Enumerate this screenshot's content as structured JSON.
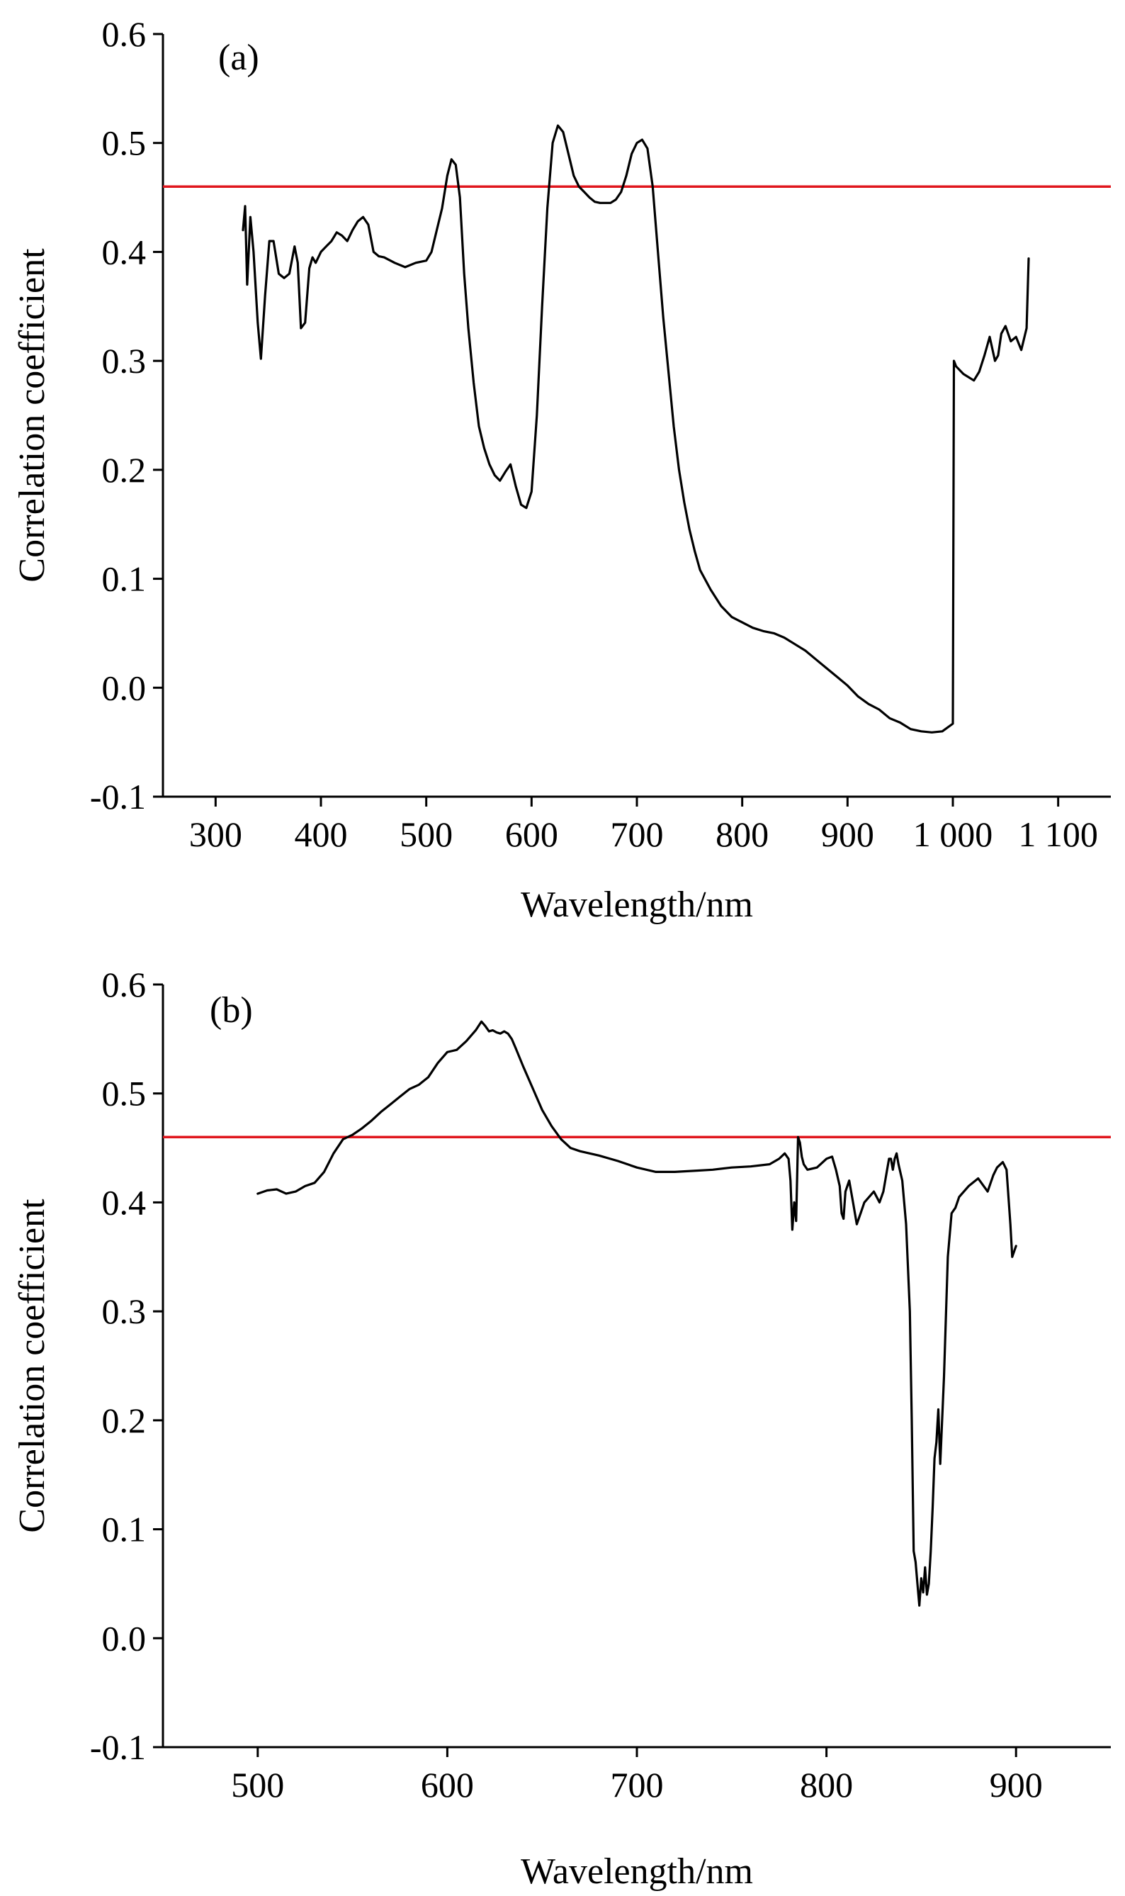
{
  "chart_data": [
    {
      "type": "line",
      "panel_label": "(a)",
      "xlabel": "Wavelength/nm",
      "ylabel": "Correlation coefficient",
      "xlim": [
        250,
        1150
      ],
      "ylim": [
        -0.1,
        0.6
      ],
      "x_ticks": [
        300,
        400,
        500,
        600,
        700,
        800,
        900,
        1000,
        1100
      ],
      "x_tick_labels": [
        "300",
        "400",
        "500",
        "600",
        "700",
        "800",
        "900",
        "1 000",
        "1 100"
      ],
      "y_ticks": [
        -0.1,
        0.0,
        0.1,
        0.2,
        0.3,
        0.4,
        0.5,
        0.6
      ],
      "y_tick_labels": [
        "-0.1",
        "0.0",
        "0.1",
        "0.2",
        "0.3",
        "0.4",
        "0.5",
        "0.6"
      ],
      "grid": false,
      "reference_line": {
        "y": 0.46,
        "color": "#e0161d"
      },
      "series": [
        {
          "color": "#000000",
          "x": [
            326,
            328,
            330,
            333,
            336,
            340,
            343,
            347,
            351,
            355,
            360,
            365,
            370,
            375,
            378,
            381,
            385,
            389,
            392,
            395,
            400,
            405,
            410,
            415,
            420,
            425,
            430,
            435,
            440,
            445,
            450,
            455,
            460,
            470,
            480,
            490,
            500,
            505,
            510,
            515,
            520,
            524,
            528,
            532,
            536,
            540,
            545,
            550,
            555,
            560,
            565,
            570,
            575,
            580,
            585,
            590,
            595,
            600,
            605,
            610,
            615,
            620,
            625,
            630,
            635,
            640,
            645,
            650,
            655,
            660,
            665,
            670,
            675,
            680,
            685,
            690,
            695,
            700,
            705,
            710,
            715,
            720,
            725,
            730,
            735,
            740,
            745,
            750,
            755,
            760,
            770,
            780,
            790,
            800,
            810,
            820,
            830,
            840,
            850,
            860,
            870,
            880,
            890,
            900,
            910,
            920,
            930,
            940,
            950,
            960,
            970,
            980,
            990,
            1000,
            1001,
            1003,
            1010,
            1020,
            1025,
            1030,
            1035,
            1040,
            1043,
            1046,
            1050,
            1055,
            1060,
            1065,
            1070,
            1072
          ],
          "y": [
            0.42,
            0.442,
            0.37,
            0.432,
            0.4,
            0.335,
            0.302,
            0.36,
            0.41,
            0.41,
            0.38,
            0.376,
            0.38,
            0.405,
            0.39,
            0.33,
            0.335,
            0.385,
            0.395,
            0.39,
            0.4,
            0.405,
            0.41,
            0.418,
            0.415,
            0.41,
            0.42,
            0.428,
            0.432,
            0.425,
            0.4,
            0.396,
            0.395,
            0.39,
            0.386,
            0.39,
            0.392,
            0.4,
            0.42,
            0.44,
            0.47,
            0.485,
            0.48,
            0.45,
            0.38,
            0.33,
            0.28,
            0.24,
            0.22,
            0.205,
            0.195,
            0.19,
            0.198,
            0.205,
            0.185,
            0.168,
            0.165,
            0.18,
            0.25,
            0.35,
            0.44,
            0.5,
            0.516,
            0.51,
            0.49,
            0.47,
            0.46,
            0.455,
            0.45,
            0.446,
            0.445,
            0.445,
            0.445,
            0.448,
            0.455,
            0.47,
            0.49,
            0.5,
            0.503,
            0.495,
            0.46,
            0.4,
            0.34,
            0.29,
            0.24,
            0.2,
            0.17,
            0.145,
            0.125,
            0.108,
            0.09,
            0.075,
            0.065,
            0.06,
            0.055,
            0.052,
            0.05,
            0.046,
            0.04,
            0.034,
            0.026,
            0.018,
            0.01,
            0.002,
            -0.008,
            -0.015,
            -0.02,
            -0.028,
            -0.032,
            -0.038,
            -0.04,
            -0.041,
            -0.04,
            -0.033,
            0.3,
            0.295,
            0.288,
            0.282,
            0.29,
            0.305,
            0.322,
            0.3,
            0.305,
            0.325,
            0.332,
            0.318,
            0.322,
            0.31,
            0.33,
            0.394
          ]
        }
      ]
    },
    {
      "type": "line",
      "panel_label": "(b)",
      "xlabel": "Wavelength/nm",
      "ylabel": "Correlation coefficient",
      "xlim": [
        450,
        950
      ],
      "ylim": [
        -0.1,
        0.6
      ],
      "x_ticks": [
        500,
        600,
        700,
        800,
        900
      ],
      "x_tick_labels": [
        "500",
        "600",
        "700",
        "800",
        "900"
      ],
      "y_ticks": [
        -0.1,
        0.0,
        0.1,
        0.2,
        0.3,
        0.4,
        0.5,
        0.6
      ],
      "y_tick_labels": [
        "-0.1",
        "0.0",
        "0.1",
        "0.2",
        "0.3",
        "0.4",
        "0.5",
        "0.6"
      ],
      "grid": false,
      "reference_line": {
        "y": 0.46,
        "color": "#e0161d"
      },
      "series": [
        {
          "color": "#000000",
          "x": [
            500,
            505,
            510,
            515,
            520,
            525,
            530,
            535,
            540,
            545,
            550,
            555,
            560,
            565,
            570,
            575,
            580,
            585,
            590,
            595,
            600,
            605,
            610,
            615,
            618,
            620,
            622,
            624,
            626,
            628,
            630,
            632,
            634,
            636,
            640,
            645,
            650,
            655,
            660,
            665,
            670,
            680,
            690,
            700,
            710,
            720,
            730,
            740,
            750,
            760,
            770,
            775,
            778,
            780,
            781,
            782,
            783,
            784,
            785,
            786,
            787,
            788,
            790,
            795,
            800,
            803,
            805,
            807,
            808,
            809,
            810,
            812,
            814,
            816,
            818,
            820,
            825,
            828,
            830,
            832,
            833,
            834,
            835,
            836,
            837,
            838,
            840,
            842,
            844,
            845,
            846,
            847,
            848,
            849,
            850,
            851,
            852,
            853,
            854,
            855,
            856,
            857,
            858,
            859,
            860,
            862,
            864,
            866,
            868,
            870,
            875,
            880,
            885,
            888,
            890,
            893,
            895,
            897,
            898,
            900
          ],
          "y": [
            0.408,
            0.411,
            0.412,
            0.408,
            0.41,
            0.415,
            0.418,
            0.428,
            0.445,
            0.458,
            0.462,
            0.468,
            0.475,
            0.483,
            0.49,
            0.497,
            0.504,
            0.508,
            0.515,
            0.528,
            0.538,
            0.54,
            0.548,
            0.558,
            0.566,
            0.562,
            0.557,
            0.558,
            0.556,
            0.555,
            0.557,
            0.555,
            0.55,
            0.542,
            0.525,
            0.505,
            0.485,
            0.47,
            0.458,
            0.45,
            0.447,
            0.443,
            0.438,
            0.432,
            0.428,
            0.428,
            0.429,
            0.43,
            0.432,
            0.433,
            0.435,
            0.44,
            0.445,
            0.44,
            0.42,
            0.375,
            0.4,
            0.383,
            0.46,
            0.455,
            0.442,
            0.435,
            0.43,
            0.432,
            0.44,
            0.442,
            0.43,
            0.415,
            0.39,
            0.385,
            0.41,
            0.42,
            0.4,
            0.38,
            0.39,
            0.4,
            0.41,
            0.4,
            0.41,
            0.43,
            0.44,
            0.44,
            0.43,
            0.44,
            0.445,
            0.435,
            0.42,
            0.38,
            0.3,
            0.2,
            0.08,
            0.07,
            0.05,
            0.03,
            0.055,
            0.042,
            0.065,
            0.04,
            0.05,
            0.08,
            0.12,
            0.165,
            0.18,
            0.21,
            0.16,
            0.24,
            0.35,
            0.39,
            0.395,
            0.405,
            0.415,
            0.422,
            0.41,
            0.425,
            0.432,
            0.437,
            0.43,
            0.38,
            0.35,
            0.36
          ]
        }
      ]
    }
  ]
}
